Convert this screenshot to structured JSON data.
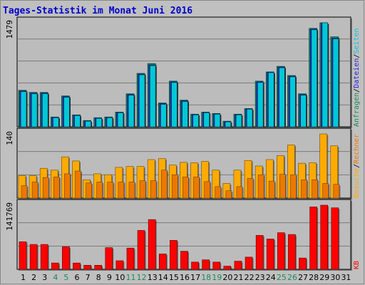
{
  "title": "Tages-Statistik im Monat Juni 2016",
  "colors": {
    "background": "#c0c0c0",
    "plot_bg": "#bcbcbc",
    "gridline": "#7a7a7a",
    "anfragen": "#1a8a5c",
    "dateien": "#2222dd",
    "seiten": "#00c8d8",
    "besuche": "#ffaa00",
    "rechner": "#ee7700",
    "kb": "#ff0000",
    "weekend_label": "#1a8a5c",
    "weekday_label": "#000000",
    "title": "#0000cc"
  },
  "side_labels": {
    "top": [
      "Anfragen",
      "/",
      "Dateien",
      "/",
      "Seiten"
    ],
    "middle": [
      "Besuche",
      "/",
      "Rechner"
    ],
    "bottom": [
      "KB"
    ]
  },
  "chart_data": [
    {
      "type": "bar",
      "panel": "top",
      "y_max_label": "1479",
      "ylim": [
        0,
        1479
      ],
      "categories": [
        "1",
        "2",
        "3",
        "4",
        "5",
        "6",
        "7",
        "8",
        "9",
        "10",
        "11",
        "12",
        "13",
        "14",
        "15",
        "16",
        "17",
        "18",
        "19",
        "20",
        "21",
        "22",
        "23",
        "24",
        "25",
        "26",
        "27",
        "28",
        "29",
        "30",
        "31"
      ],
      "weekend_days": [
        "4",
        "5",
        "11",
        "12",
        "18",
        "19",
        "25",
        "26"
      ],
      "series": [
        {
          "name": "Anfragen",
          "values": [
            520,
            490,
            490,
            140,
            440,
            170,
            90,
            130,
            140,
            210,
            470,
            760,
            900,
            340,
            650,
            380,
            180,
            210,
            190,
            80,
            180,
            260,
            650,
            780,
            860,
            730,
            470,
            1400,
            1479,
            1280,
            0
          ]
        },
        {
          "name": "Dateien",
          "values": [
            510,
            480,
            480,
            135,
            430,
            165,
            85,
            125,
            135,
            205,
            460,
            750,
            880,
            330,
            640,
            370,
            175,
            205,
            185,
            75,
            175,
            255,
            640,
            780,
            850,
            720,
            460,
            1390,
            1479,
            1260,
            0
          ]
        },
        {
          "name": "Seiten",
          "values": [
            500,
            470,
            470,
            130,
            420,
            160,
            80,
            120,
            130,
            200,
            450,
            740,
            870,
            320,
            630,
            360,
            170,
            200,
            180,
            70,
            170,
            250,
            630,
            770,
            840,
            710,
            450,
            1380,
            1479,
            1250,
            0
          ]
        }
      ]
    },
    {
      "type": "bar",
      "panel": "middle",
      "y_max_label": "140",
      "ylim": [
        0,
        140
      ],
      "categories": [
        "1",
        "2",
        "3",
        "4",
        "5",
        "6",
        "7",
        "8",
        "9",
        "10",
        "11",
        "12",
        "13",
        "14",
        "15",
        "16",
        "17",
        "18",
        "19",
        "20",
        "21",
        "22",
        "23",
        "24",
        "25",
        "26",
        "27",
        "28",
        "29",
        "30",
        "31"
      ],
      "series": [
        {
          "name": "Besuche",
          "values": [
            49,
            49,
            65,
            61,
            90,
            81,
            40,
            53,
            51,
            67,
            69,
            69,
            84,
            86,
            72,
            78,
            77,
            80,
            61,
            32,
            61,
            82,
            70,
            84,
            93,
            116,
            76,
            77,
            140,
            114,
            0
          ]
        },
        {
          "name": "Rechner",
          "values": [
            27,
            35,
            45,
            46,
            53,
            59,
            33,
            35,
            35,
            35,
            35,
            38,
            38,
            61,
            51,
            46,
            46,
            36,
            25,
            16,
            25,
            43,
            51,
            37,
            52,
            51,
            40,
            40,
            32,
            30,
            0
          ]
        }
      ]
    },
    {
      "type": "bar",
      "panel": "bottom",
      "y_max_label": "141769",
      "ylim": [
        0,
        141769
      ],
      "categories": [
        "1",
        "2",
        "3",
        "4",
        "5",
        "6",
        "7",
        "8",
        "9",
        "10",
        "11",
        "12",
        "13",
        "14",
        "15",
        "16",
        "17",
        "18",
        "19",
        "20",
        "21",
        "22",
        "23",
        "24",
        "25",
        "26",
        "27",
        "28",
        "29",
        "30",
        "31"
      ],
      "series": [
        {
          "name": "KB",
          "values": [
            61000,
            55000,
            55000,
            14000,
            50000,
            14000,
            9000,
            9000,
            48000,
            19000,
            47000,
            86000,
            110000,
            34000,
            64000,
            40000,
            16000,
            21000,
            16000,
            7000,
            18000,
            27000,
            75000,
            67000,
            81000,
            77000,
            25000,
            138000,
            141769,
            136000,
            0
          ]
        }
      ]
    }
  ]
}
